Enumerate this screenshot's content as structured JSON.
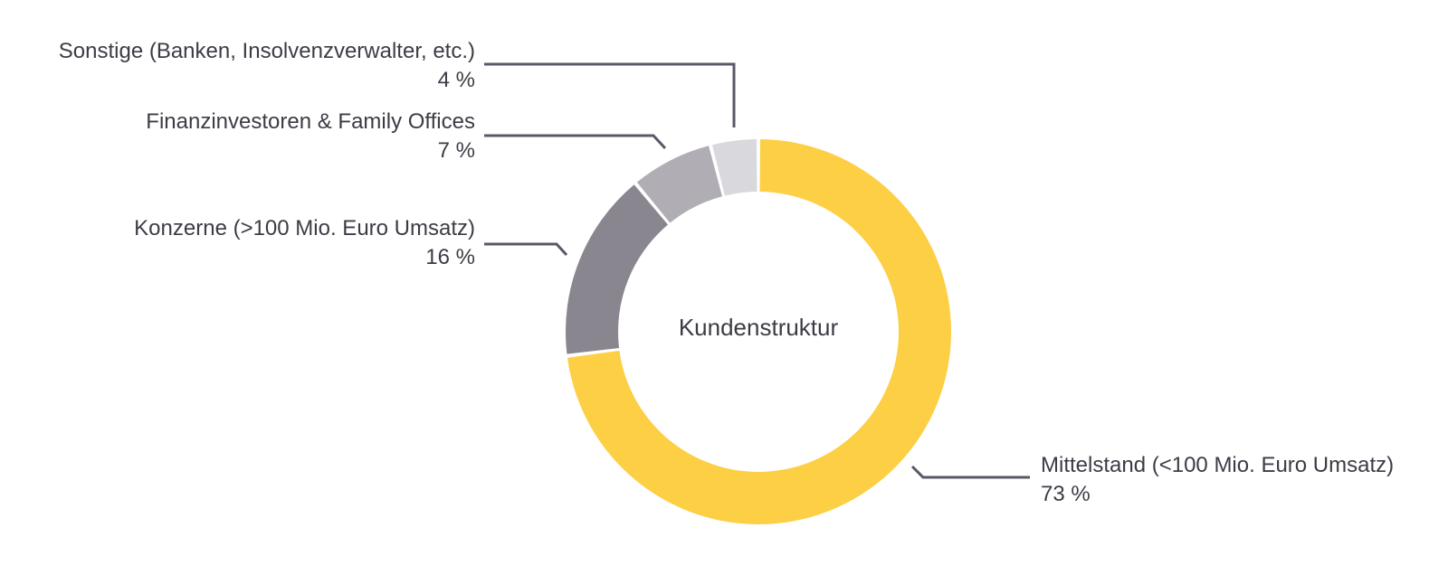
{
  "chart_data": {
    "type": "pie",
    "title": "Kundenstruktur",
    "slices": [
      {
        "label": "Mittelstand (<100 Mio. Euro Umsatz)",
        "value_label": "73 %",
        "value": 73,
        "color": "#fdcf44"
      },
      {
        "label": "Konzerne (>100 Mio. Euro Umsatz)",
        "value_label": "16 %",
        "value": 16,
        "color": "#8a8690"
      },
      {
        "label": "Finanzinvestoren & Family Offices",
        "value_label": "7 %",
        "value": 7,
        "color": "#b0adb5"
      },
      {
        "label": "Sonstige (Banken, Insolvenzverwalter, etc.)",
        "value_label": "4 %",
        "value": 4,
        "color": "#d9d8dc"
      }
    ],
    "leader_line_color": "#5b5766",
    "text_color": "#3c3c46"
  }
}
